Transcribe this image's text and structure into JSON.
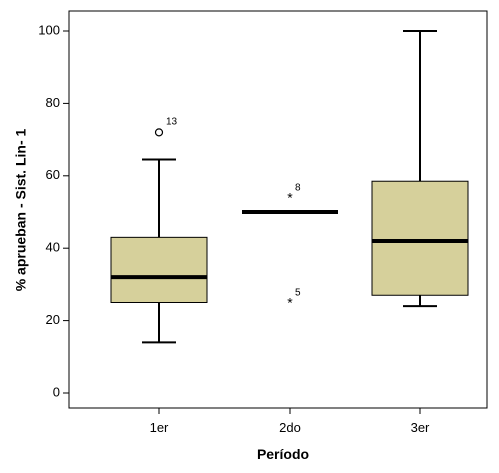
{
  "chart_data": {
    "type": "boxplot",
    "xlabel": "Período",
    "ylabel": "% aprueban - Sist. Lin- 1",
    "ylim": [
      -3,
      104
    ],
    "yticks": [
      0,
      20,
      40,
      60,
      80,
      100
    ],
    "grid": false,
    "box_color": "#d6d09b",
    "categories": [
      "1er",
      "2do",
      "3er"
    ],
    "boxes": [
      {
        "category": "1er",
        "whisker_low": 14,
        "q1": 25,
        "median": 32,
        "q3": 43,
        "whisker_high": 64.5,
        "outliers": [
          {
            "value": 72,
            "marker": "circle",
            "label": "13"
          }
        ]
      },
      {
        "category": "2do",
        "whisker_low": 50,
        "q1": 50,
        "median": 50,
        "q3": 50,
        "whisker_high": 50,
        "outliers": [
          {
            "value": 54,
            "marker": "star",
            "label": "8"
          },
          {
            "value": 25,
            "marker": "star",
            "label": "5"
          }
        ]
      },
      {
        "category": "3er",
        "whisker_low": 24,
        "q1": 27,
        "median": 42,
        "q3": 58.5,
        "whisker_high": 100,
        "outliers": []
      }
    ]
  }
}
